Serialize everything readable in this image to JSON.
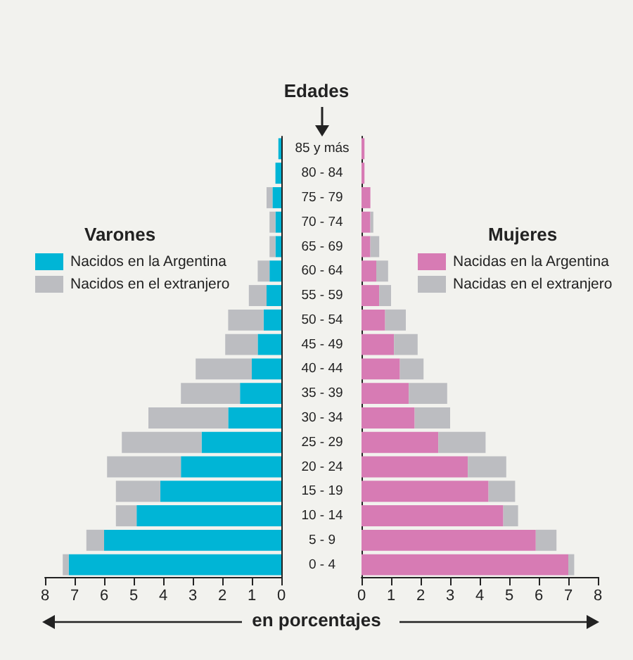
{
  "chart_data": [
    {
      "type": "bar",
      "orientation": "horizontal",
      "stacked": true,
      "legend_title": "Varones",
      "xlabel": "en porcentajes",
      "series": [
        {
          "name": "Nacidos en la Argentina",
          "color": "#00b5d6",
          "values": [
            0.1,
            0.2,
            0.3,
            0.2,
            0.2,
            0.4,
            0.5,
            0.6,
            0.8,
            1.0,
            1.4,
            1.8,
            2.7,
            3.4,
            4.1,
            4.9,
            6.0,
            7.2
          ]
        },
        {
          "name": "Nacidos en el extranjero",
          "color": "#bcbdc1",
          "values": [
            0,
            0,
            0.2,
            0.2,
            0.2,
            0.4,
            0.6,
            1.2,
            1.1,
            1.9,
            2.0,
            2.7,
            2.7,
            2.5,
            1.5,
            0.7,
            0.6,
            0.2
          ]
        }
      ],
      "xlim": [
        8,
        0
      ],
      "xticks": [
        8,
        7,
        6,
        5,
        4,
        3,
        2,
        1,
        0
      ],
      "grid": false,
      "legend": "top left",
      "tick_labels": "x"
    },
    {
      "type": "bar",
      "orientation": "horizontal",
      "stacked": true,
      "legend_title": "Mujeres",
      "ylabel": "Edades",
      "categories": [
        "85 y más",
        "80 - 84",
        "75 - 79",
        "70 - 74",
        "65 - 69",
        "60 - 64",
        "55 - 59",
        "50 - 54",
        "45 - 49",
        "40 - 44",
        "35 - 39",
        "30 - 34",
        "25 - 29",
        "20 - 24",
        "15 - 19",
        "10 - 14",
        "5 - 9",
        "0 - 4"
      ],
      "series": [
        {
          "name": "Nacidas en la Argentina",
          "color": "#d77bb4",
          "values": [
            0.1,
            0.1,
            0.3,
            0.3,
            0.3,
            0.5,
            0.6,
            0.8,
            1.1,
            1.3,
            1.6,
            1.8,
            2.6,
            3.6,
            4.3,
            4.8,
            5.9,
            7.0
          ]
        },
        {
          "name": "Nacidas en el extranjero",
          "color": "#bcbdc1",
          "values": [
            0,
            0,
            0,
            0.1,
            0.3,
            0.4,
            0.4,
            0.7,
            0.8,
            0.8,
            1.3,
            1.2,
            1.6,
            1.3,
            0.9,
            0.5,
            0.7,
            0.2
          ]
        }
      ],
      "xlim": [
        0,
        8
      ],
      "xticks": [
        0,
        1,
        2,
        3,
        4,
        5,
        6,
        7,
        8
      ],
      "grid": false,
      "legend": "top right"
    }
  ]
}
